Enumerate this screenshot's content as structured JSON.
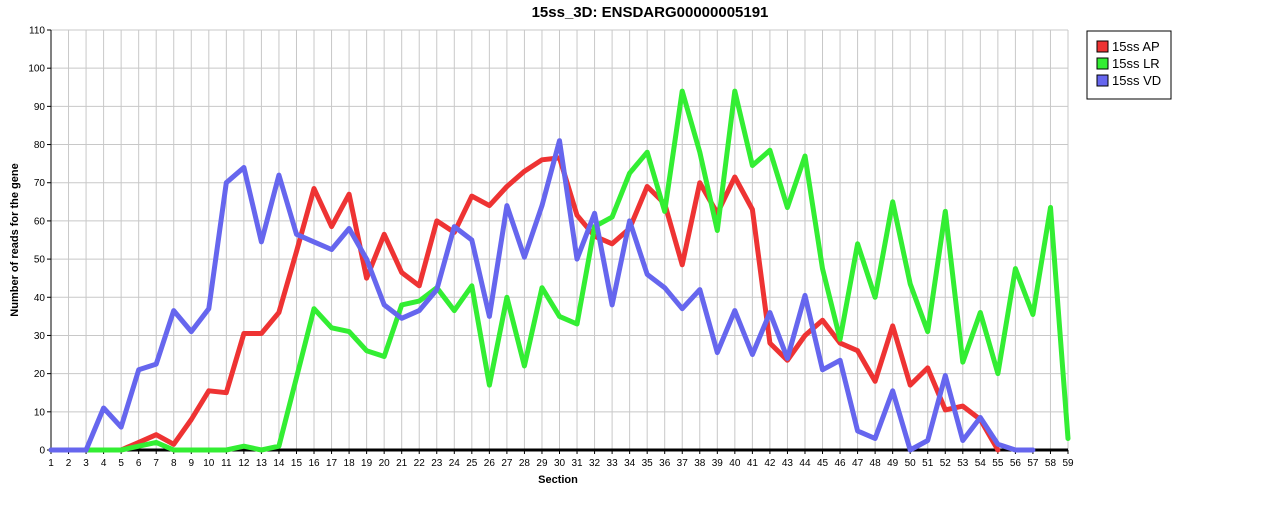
{
  "chart_data": {
    "type": "line",
    "title": "15ss_3D: ENSDARG00000005191",
    "xlabel": "Section",
    "ylabel": "Number of reads for the gene",
    "x": [
      1,
      2,
      3,
      4,
      5,
      6,
      7,
      8,
      9,
      10,
      11,
      12,
      13,
      14,
      15,
      16,
      17,
      18,
      19,
      20,
      21,
      22,
      23,
      24,
      25,
      26,
      27,
      28,
      29,
      30,
      31,
      32,
      33,
      34,
      35,
      36,
      37,
      38,
      39,
      40,
      41,
      42,
      43,
      44,
      45,
      46,
      47,
      48,
      49,
      50,
      51,
      52,
      53,
      54,
      55,
      56,
      57,
      58,
      59
    ],
    "xlim": [
      1,
      59
    ],
    "ylim": [
      0,
      110
    ],
    "yticks": [
      0,
      10,
      20,
      30,
      40,
      50,
      60,
      70,
      80,
      90,
      100,
      110
    ],
    "grid": true,
    "legend_position": "top-right",
    "series": [
      {
        "name": "15ss AP",
        "color": "#ee3333",
        "values": [
          0,
          0,
          0,
          0,
          0,
          2,
          4,
          1.5,
          8,
          15.5,
          15,
          30.5,
          30.5,
          36,
          52,
          68.5,
          58.5,
          67,
          45,
          56.5,
          46.5,
          43,
          60,
          57,
          66.5,
          64,
          69,
          73,
          76,
          76.5,
          61.5,
          56,
          54,
          58,
          69,
          64.5,
          48.5,
          70,
          62,
          71.5,
          63,
          28,
          23.5,
          30,
          34,
          28,
          26,
          18,
          32.5,
          17,
          21.5,
          10.5,
          11.5,
          8,
          0,
          null,
          null,
          null,
          null
        ]
      },
      {
        "name": "15ss LR",
        "color": "#33ee33",
        "values": [
          0,
          0,
          0,
          0,
          0,
          1,
          2,
          0,
          0,
          0,
          0,
          1,
          0,
          1,
          19,
          37,
          32,
          31,
          26,
          24.5,
          38,
          39,
          42.5,
          36.5,
          43,
          17,
          40,
          22,
          42.5,
          35,
          33,
          58.5,
          61,
          72.5,
          78,
          62.5,
          94,
          78,
          57.5,
          94,
          74.5,
          78.5,
          63.5,
          77,
          47.5,
          29,
          54,
          40,
          65,
          43.5,
          31,
          62.5,
          23,
          36,
          20,
          47.5,
          35.5,
          63.5,
          3
        ]
      },
      {
        "name": "15ss VD",
        "color": "#6666ee",
        "values": [
          0,
          0,
          0,
          11,
          6,
          21,
          22.5,
          36.5,
          31,
          37,
          70,
          74,
          54.5,
          72,
          56.5,
          54.5,
          52.5,
          58,
          50,
          38,
          34.5,
          36.5,
          42,
          58.5,
          55,
          35,
          64,
          50.5,
          64,
          81,
          50,
          62,
          38,
          60,
          46,
          42.5,
          37,
          42,
          25.5,
          36.5,
          25,
          36,
          24,
          40.5,
          21,
          23.5,
          5,
          3,
          15.5,
          0,
          2.5,
          19.5,
          2.5,
          8.5,
          1.5,
          0,
          0,
          null,
          null
        ]
      }
    ]
  }
}
